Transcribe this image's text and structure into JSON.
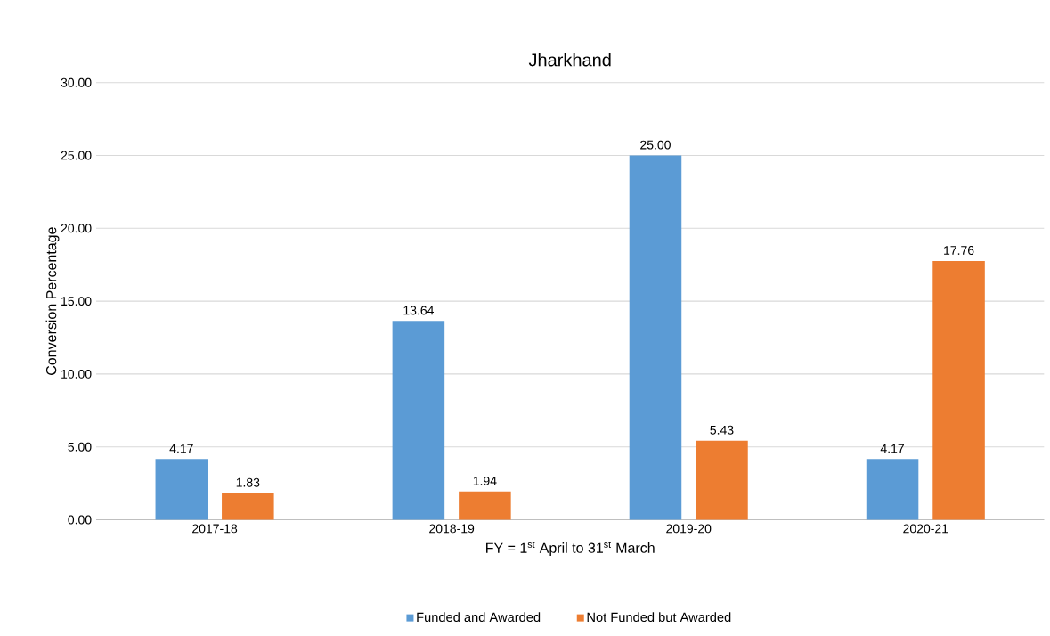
{
  "chart_data": {
    "type": "bar",
    "title": "Jharkhand",
    "xlabel": "FY = 1$^{st}$ April to 31$^{st}$ March",
    "ylabel": "Conversion Percentage",
    "categories": [
      "2017-18",
      "2018-19",
      "2019-20",
      "2020-21"
    ],
    "series": [
      {
        "name": "Funded and Awarded",
        "color": "#5b9bd5",
        "values": [
          4.17,
          13.64,
          25.0,
          4.17
        ],
        "value_labels": [
          "4.17",
          "13.64",
          "25.00",
          "4.17"
        ]
      },
      {
        "name": "Not Funded but Awarded",
        "color": "#ed7d31",
        "values": [
          1.83,
          1.94,
          5.43,
          17.76
        ],
        "value_labels": [
          "1.83",
          "1.94",
          "5.43",
          "17.76"
        ]
      }
    ],
    "ylim": [
      0,
      30
    ],
    "yticks": [
      {
        "value": 0,
        "label": "0.00"
      },
      {
        "value": 5,
        "label": "5.00"
      },
      {
        "value": 10,
        "label": "10.00"
      },
      {
        "value": 15,
        "label": "15.00"
      },
      {
        "value": 20,
        "label": "20.00"
      },
      {
        "value": 25,
        "label": "25.00"
      },
      {
        "value": 30,
        "label": "30.00"
      }
    ],
    "grid": "y",
    "legend": "bottom"
  }
}
